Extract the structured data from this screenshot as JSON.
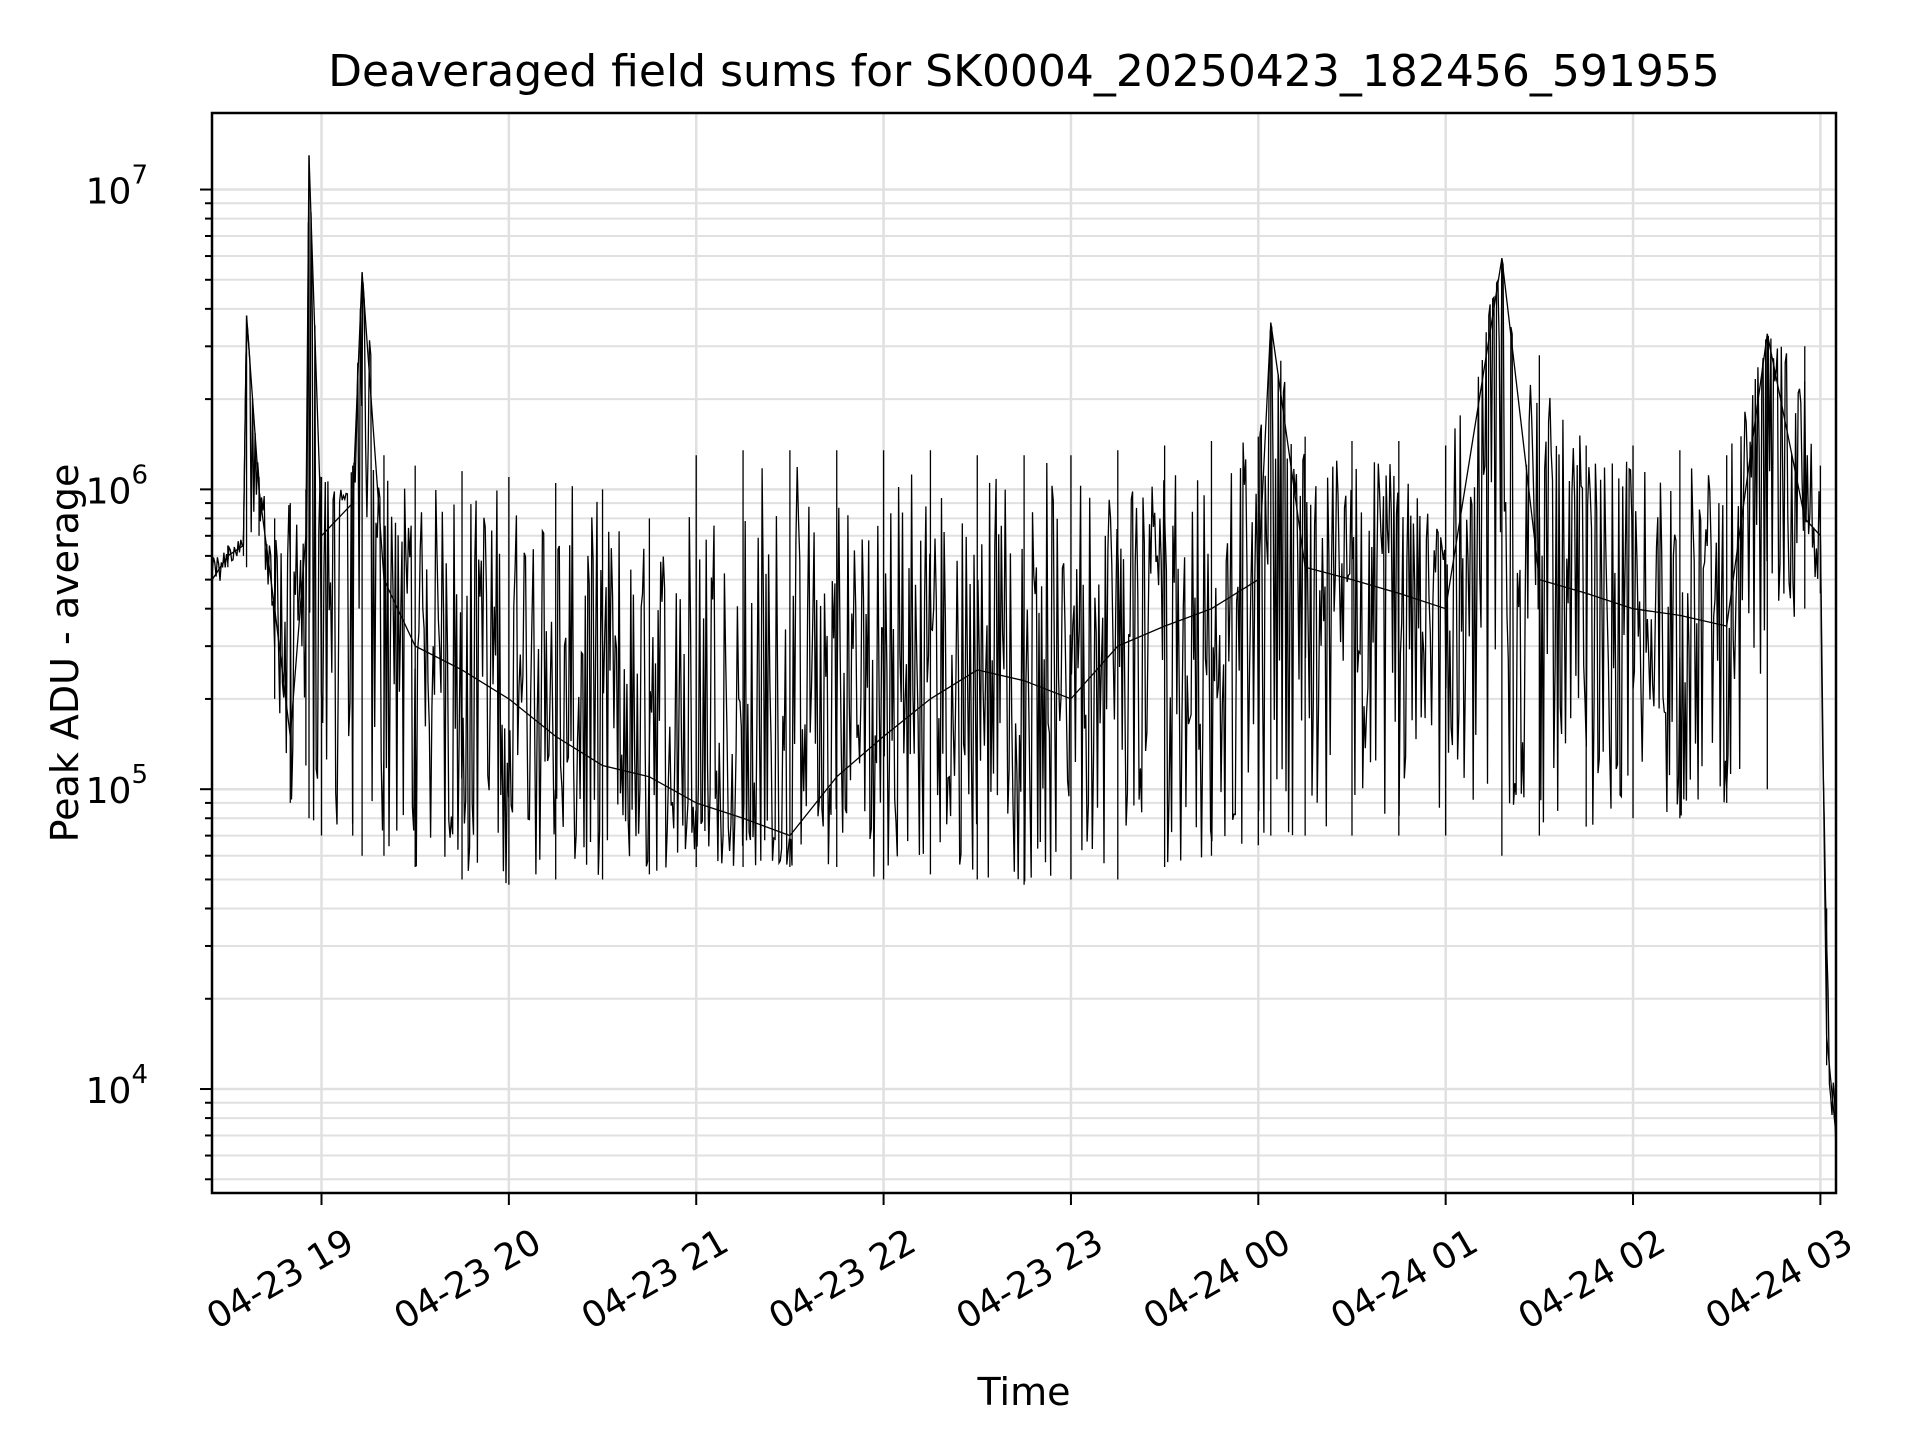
{
  "chart_data": {
    "type": "line",
    "title": "Deaveraged field sums for SK0004_20250423_182456_591955",
    "xlabel": "Time",
    "ylabel": "Peak ADU - average",
    "yscale": "log",
    "xlim": [
      "2025-04-23 18:24:56",
      "2025-04-24 03:05:00"
    ],
    "ylim": [
      4500,
      18000000
    ],
    "grid": true,
    "line_color": "#000000",
    "x_ticks": [
      {
        "t": "2025-04-23 19:00",
        "label": "04-23 19"
      },
      {
        "t": "2025-04-23 20:00",
        "label": "04-23 20"
      },
      {
        "t": "2025-04-23 21:00",
        "label": "04-23 21"
      },
      {
        "t": "2025-04-23 22:00",
        "label": "04-23 22"
      },
      {
        "t": "2025-04-23 23:00",
        "label": "04-23 23"
      },
      {
        "t": "2025-04-24 00:00",
        "label": "04-24 00"
      },
      {
        "t": "2025-04-24 01:00",
        "label": "04-24 01"
      },
      {
        "t": "2025-04-24 02:00",
        "label": "04-24 02"
      },
      {
        "t": "2025-04-24 03:00",
        "label": "04-24 03"
      }
    ],
    "y_ticks": [
      {
        "value": 10000,
        "base": "10",
        "exp": "4"
      },
      {
        "value": 100000,
        "base": "10",
        "exp": "5"
      },
      {
        "value": 1000000,
        "base": "10",
        "exp": "6"
      },
      {
        "value": 10000000,
        "base": "10",
        "exp": "7"
      }
    ],
    "series": [
      {
        "x": [
          "2025-04-23 18:25",
          "2025-04-23 18:30",
          "2025-04-23 18:35",
          "2025-04-23 18:36",
          "2025-04-23 18:40",
          "2025-04-23 18:45",
          "2025-04-23 18:50",
          "2025-04-23 18:55",
          "2025-04-23 18:56",
          "2025-04-23 19:00",
          "2025-04-23 19:10",
          "2025-04-23 19:13",
          "2025-04-23 19:20",
          "2025-04-23 19:30",
          "2025-04-23 19:45",
          "2025-04-23 20:00",
          "2025-04-23 20:15",
          "2025-04-23 20:30",
          "2025-04-23 20:45",
          "2025-04-23 21:00",
          "2025-04-23 21:15",
          "2025-04-23 21:30",
          "2025-04-23 21:45",
          "2025-04-23 22:00",
          "2025-04-23 22:15",
          "2025-04-23 22:30",
          "2025-04-23 22:45",
          "2025-04-23 23:00",
          "2025-04-23 23:15",
          "2025-04-23 23:30",
          "2025-04-23 23:45",
          "2025-04-24 00:00",
          "2025-04-24 00:04",
          "2025-04-24 00:15",
          "2025-04-24 00:30",
          "2025-04-24 00:45",
          "2025-04-24 01:00",
          "2025-04-24 01:18",
          "2025-04-24 01:30",
          "2025-04-24 01:45",
          "2025-04-24 02:00",
          "2025-04-24 02:15",
          "2025-04-24 02:30",
          "2025-04-24 02:43",
          "2025-04-24 02:55",
          "2025-04-24 03:00",
          "2025-04-24 03:02",
          "2025-04-24 03:05"
        ],
        "y": [
          500000,
          600000,
          650000,
          3800000,
          1000000,
          400000,
          150000,
          700000,
          13000000,
          700000,
          900000,
          5300000,
          500000,
          300000,
          250000,
          200000,
          150000,
          120000,
          110000,
          90000,
          80000,
          70000,
          110000,
          150000,
          200000,
          250000,
          230000,
          200000,
          300000,
          350000,
          400000,
          500000,
          3600000,
          550000,
          500000,
          450000,
          400000,
          5900000,
          500000,
          450000,
          400000,
          380000,
          350000,
          3300000,
          800000,
          700000,
          15000,
          7000
        ],
        "y_low": [
          400000,
          550000,
          600000,
          550000,
          700000,
          200000,
          90000,
          120000,
          80000,
          70000,
          70000,
          60000,
          60000,
          55000,
          50000,
          48000,
          50000,
          50000,
          52000,
          55000,
          55000,
          55000,
          55000,
          50000,
          52000,
          50000,
          48000,
          50000,
          50000,
          55000,
          60000,
          65000,
          70000,
          70000,
          70000,
          70000,
          70000,
          60000,
          70000,
          75000,
          80000,
          80000,
          90000,
          100000,
          400000,
          450000,
          12000,
          6000
        ],
        "y_high": [
          600000,
          650000,
          700000,
          3800000,
          1100000,
          800000,
          900000,
          1000000,
          13000000,
          1100000,
          1200000,
          5300000,
          1300000,
          1200000,
          1150000,
          1100000,
          1050000,
          1000000,
          800000,
          1300000,
          1350000,
          1350000,
          1350000,
          1350000,
          1350000,
          1300000,
          1300000,
          1300000,
          1350000,
          1400000,
          1450000,
          1500000,
          3600000,
          1500000,
          1450000,
          1450000,
          1400000,
          5900000,
          2800000,
          1400000,
          1400000,
          1350000,
          1300000,
          3300000,
          3000000,
          1200000,
          40000,
          15000
        ]
      }
    ]
  }
}
